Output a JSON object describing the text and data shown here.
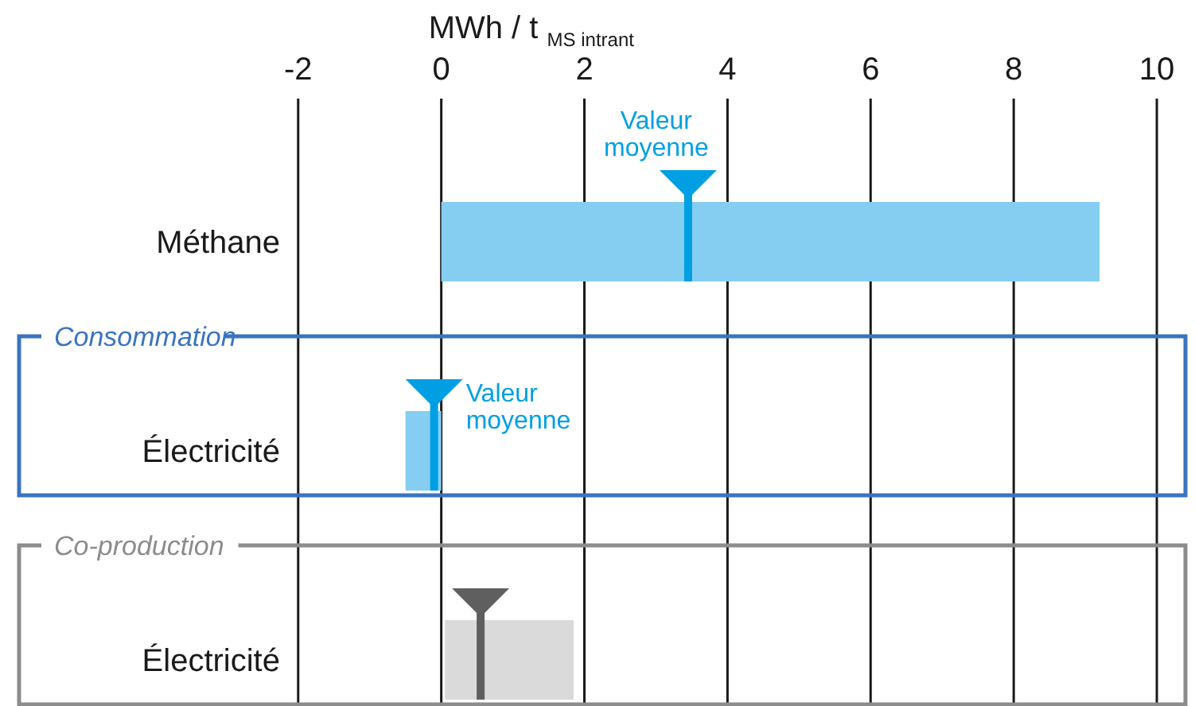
{
  "chart_data": {
    "type": "bar",
    "orientation": "horizontal",
    "xlabel": "MWh / t $_{MS intrant}$",
    "categories": [
      "Méthane",
      "Électricité",
      "Électricité"
    ],
    "xlim": [
      -5.9,
      10.4
    ],
    "xticks": [
      -2,
      0,
      2,
      4,
      6,
      8,
      10
    ],
    "grid": "x",
    "series": [
      {
        "values": [
          9.2,
          0.5,
          1.8
        ],
        "base": [
          0,
          -0.5,
          0.05
        ],
        "colors": [
          "#85cef2",
          "#85cef2",
          "#d9dad9"
        ]
      },
      {
        "type": "scatter",
        "name": "Valeur moyenne",
        "marker": "triangle",
        "color": "#009fe3",
        "values": [
          3.45,
          -0.1,
          null
        ]
      },
      {
        "type": "scatter",
        "marker": "triangle",
        "color": "#5f5f5f",
        "values": [
          null,
          null,
          0.55
        ]
      }
    ],
    "annotations": [
      "Consommation",
      "Co-production"
    ]
  }
}
